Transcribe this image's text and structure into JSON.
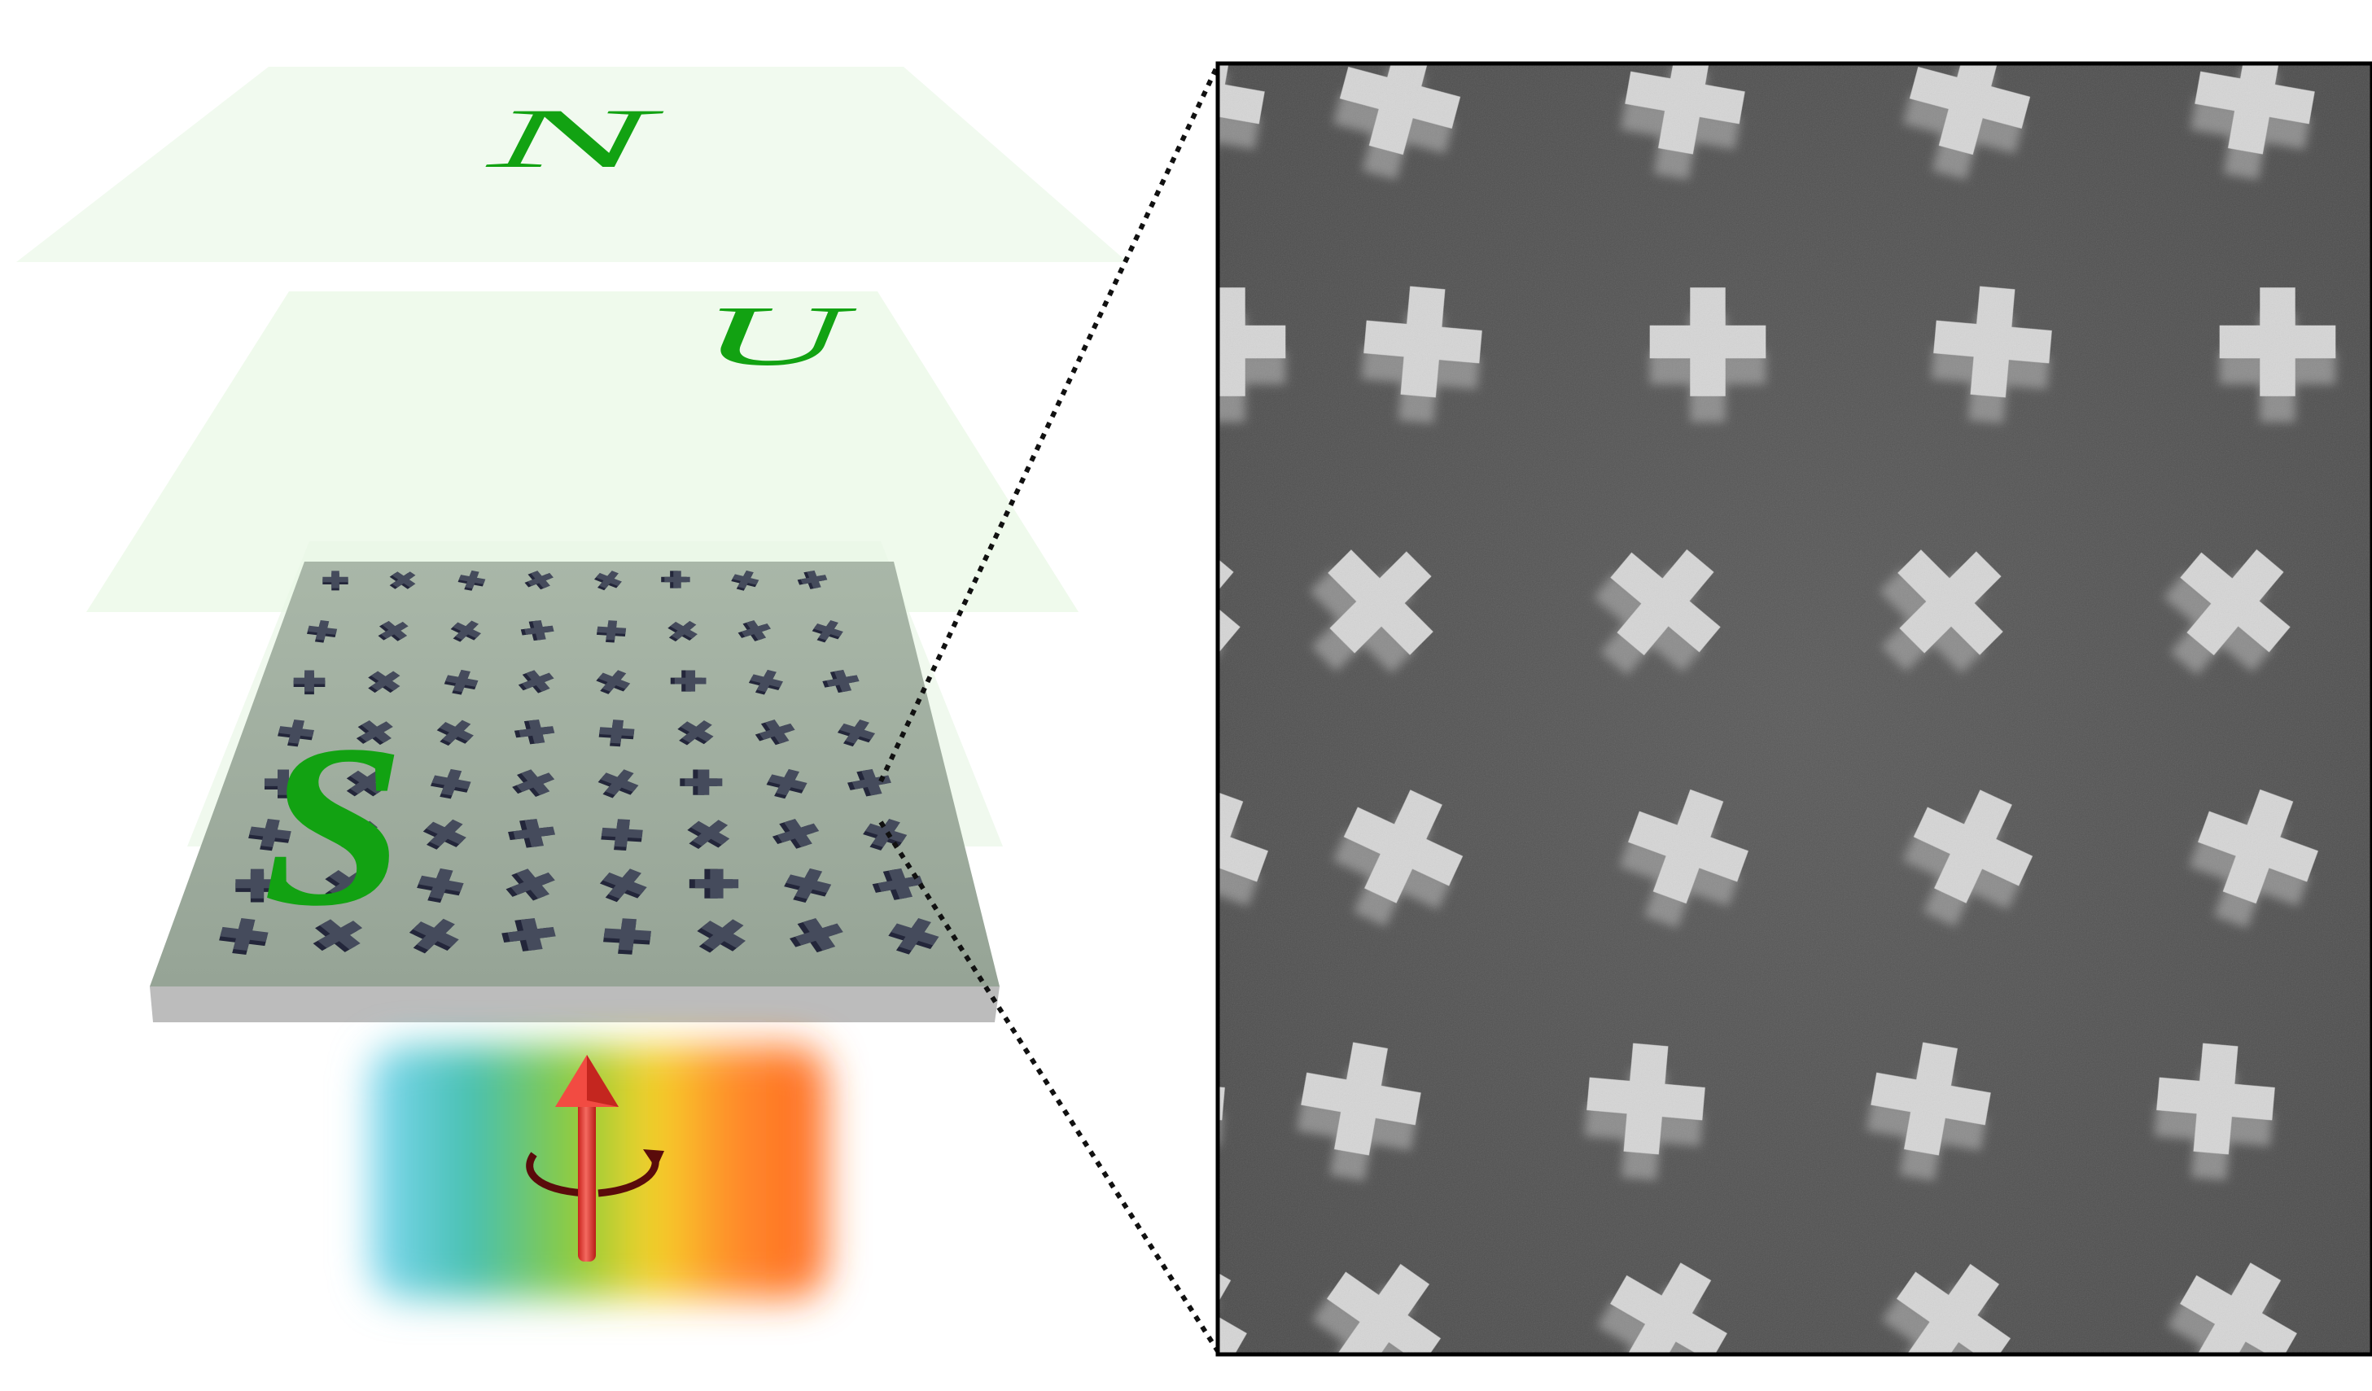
{
  "figure": {
    "letters": {
      "top_layer": "N",
      "middle_layer": "U",
      "bottom_layer": "S"
    },
    "colors": {
      "letter_green": "#12a212",
      "layer_tint": "#e9f8e6",
      "substrate_top": "#9fae9f",
      "substrate_edge": "#bdbdbd",
      "cross_dark": "#3a3f4d",
      "arrow_red": "#e8443c",
      "sem_background": "#555555",
      "sem_particle": "#d9d9d9"
    },
    "icons": [
      "rotation-arrow-icon",
      "zoom-connector-lines"
    ]
  }
}
